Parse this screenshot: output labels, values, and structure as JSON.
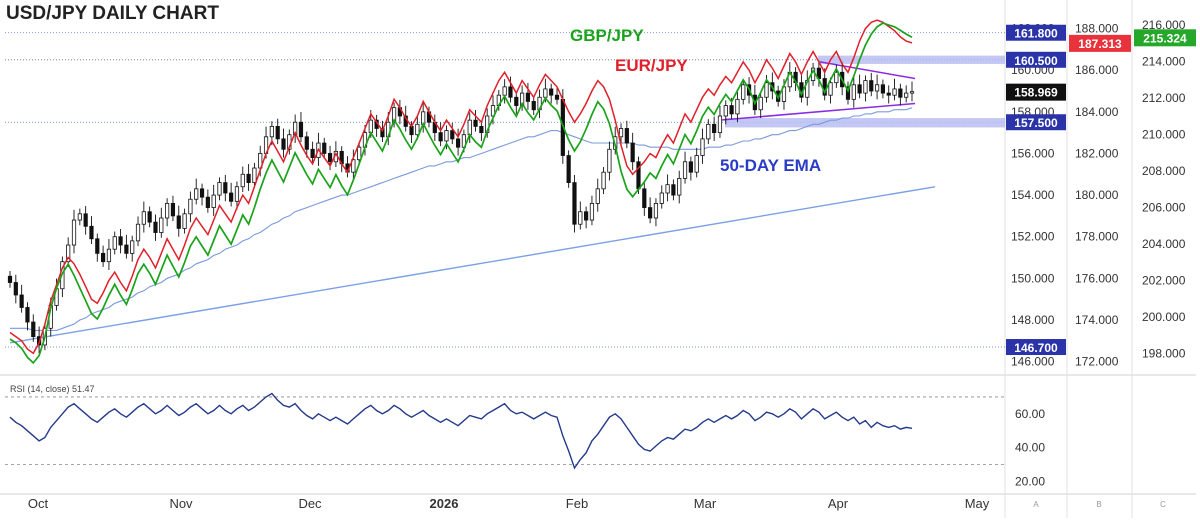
{
  "title": "USD/JPY DAILY CHART",
  "colors": {
    "usdjpy_up": "#ffffff",
    "usdjpy_down": "#111111",
    "gbpjpy": "#1aa31a",
    "eurjpy": "#e0202a",
    "ema": "#7b9bdc",
    "trendline": "#7ba0e6",
    "triangle": "#8a2be2",
    "level_box": "#2a34a8",
    "rsi": "#233a8c"
  },
  "annotations": {
    "gbpjpy": "GBP/JPY",
    "eurjpy": "EUR/JPY",
    "ema": "50-DAY EMA"
  },
  "axes": {
    "usdjpy_ticks": [
      "146.000",
      "148.000",
      "150.000",
      "152.000",
      "154.000",
      "156.000",
      "158.000",
      "160.000",
      "162.000"
    ],
    "eurjpy_ticks": [
      "172.000",
      "174.000",
      "176.000",
      "178.000",
      "180.000",
      "182.000",
      "184.000",
      "186.000",
      "188.000"
    ],
    "gbpjpy_ticks": [
      "198.000",
      "200.000",
      "202.000",
      "204.000",
      "206.000",
      "208.000",
      "210.000",
      "212.000",
      "214.000",
      "216.000"
    ],
    "rsi_ticks": [
      "20.00",
      "40.00",
      "60.00"
    ],
    "x_ticks": [
      "Oct",
      "Nov",
      "Dec",
      "2026",
      "Feb",
      "Mar",
      "Apr",
      "May"
    ],
    "scale_letters": [
      "A",
      "B",
      "C"
    ],
    "usdjpy_range": [
      145.5,
      162.7
    ],
    "eurjpy_range": [
      171.5,
      188.7
    ],
    "gbpjpy_range": [
      197.0,
      216.6
    ],
    "rsi_range": [
      15,
      80
    ]
  },
  "levels": [
    {
      "label": "161.800",
      "value": 161.8
    },
    {
      "label": "160.500",
      "value": 160.5
    },
    {
      "label": "157.500",
      "value": 157.5
    },
    {
      "label": "146.700",
      "value": 146.7
    }
  ],
  "price_tags": {
    "usdjpy": "158.969",
    "eurjpy": "187.313",
    "gbpjpy": "215.324"
  },
  "rsi_label": "RSI (14, close) 51.47",
  "chart_data": {
    "type": "line",
    "x_months": [
      "Oct",
      "Nov",
      "Dec",
      "2026",
      "Feb",
      "Mar",
      "Apr",
      "May"
    ],
    "usdjpy_close": [
      149.8,
      149.2,
      148.6,
      147.9,
      147.2,
      146.8,
      147.6,
      148.7,
      149.5,
      150.8,
      151.6,
      152.8,
      153.1,
      152.5,
      151.9,
      151.2,
      150.8,
      151.4,
      152.0,
      151.6,
      151.2,
      151.8,
      152.6,
      153.2,
      152.7,
      152.2,
      152.9,
      153.6,
      153.0,
      152.4,
      153.1,
      153.8,
      154.3,
      153.9,
      153.4,
      154.0,
      154.6,
      154.1,
      153.7,
      154.4,
      155.0,
      154.6,
      155.3,
      156.0,
      156.8,
      157.3,
      156.7,
      156.2,
      156.9,
      157.5,
      156.8,
      156.2,
      155.8,
      156.5,
      156.0,
      155.6,
      156.1,
      155.5,
      155.1,
      155.7,
      156.3,
      157.0,
      157.6,
      157.2,
      156.8,
      157.5,
      158.2,
      157.8,
      157.3,
      156.9,
      157.4,
      158.0,
      157.5,
      157.0,
      156.6,
      157.1,
      156.7,
      156.3,
      156.9,
      157.6,
      157.3,
      157.0,
      157.8,
      158.3,
      158.8,
      159.2,
      158.7,
      158.3,
      158.9,
      158.5,
      158.1,
      158.7,
      159.1,
      158.8,
      158.6,
      155.9,
      154.6,
      152.6,
      153.2,
      152.8,
      153.6,
      154.3,
      155.1,
      156.2,
      156.8,
      157.2,
      156.5,
      155.6,
      154.3,
      153.4,
      152.9,
      153.6,
      154.1,
      154.5,
      154.0,
      154.8,
      155.6,
      155.1,
      155.9,
      156.7,
      157.4,
      157.0,
      157.8,
      158.3,
      157.9,
      158.6,
      159.3,
      158.8,
      158.1,
      158.7,
      159.4,
      159.0,
      158.5,
      159.2,
      159.9,
      159.4,
      158.7,
      159.5,
      160.1,
      159.6,
      158.8,
      159.4,
      159.9,
      159.2,
      158.6,
      159.3,
      158.9,
      159.5,
      159.0,
      159.3,
      158.9,
      158.8,
      159.1,
      158.7,
      158.9,
      158.969
    ],
    "usdjpy_ema50": [
      147.6,
      147.6,
      147.6,
      147.6,
      147.5,
      147.5,
      147.5,
      147.5,
      147.5,
      147.6,
      147.7,
      147.8,
      148.0,
      148.1,
      148.3,
      148.4,
      148.5,
      148.6,
      148.8,
      148.9,
      149.0,
      149.1,
      149.3,
      149.4,
      149.6,
      149.7,
      149.8,
      150.0,
      150.1,
      150.2,
      150.4,
      150.5,
      150.7,
      150.8,
      150.9,
      151.1,
      151.2,
      151.4,
      151.5,
      151.6,
      151.8,
      151.9,
      152.1,
      152.2,
      152.4,
      152.6,
      152.7,
      152.9,
      153.0,
      153.2,
      153.3,
      153.4,
      153.5,
      153.6,
      153.7,
      153.8,
      153.9,
      154.0,
      154.0,
      154.1,
      154.2,
      154.3,
      154.4,
      154.5,
      154.6,
      154.7,
      154.8,
      154.9,
      155.0,
      155.1,
      155.2,
      155.3,
      155.4,
      155.4,
      155.5,
      155.6,
      155.6,
      155.7,
      155.8,
      155.8,
      155.9,
      156.0,
      156.1,
      156.2,
      156.3,
      156.4,
      156.5,
      156.6,
      156.7,
      156.8,
      156.8,
      156.9,
      157.0,
      157.1,
      157.1,
      157.0,
      156.9,
      156.8,
      156.7,
      156.6,
      156.5,
      156.5,
      156.5,
      156.5,
      156.5,
      156.5,
      156.5,
      156.5,
      156.4,
      156.4,
      156.3,
      156.3,
      156.3,
      156.3,
      156.2,
      156.2,
      156.2,
      156.2,
      156.2,
      156.2,
      156.3,
      156.3,
      156.3,
      156.4,
      156.4,
      156.5,
      156.6,
      156.6,
      156.7,
      156.7,
      156.8,
      156.9,
      156.9,
      157.0,
      157.1,
      157.1,
      157.2,
      157.3,
      157.4,
      157.4,
      157.5,
      157.6,
      157.6,
      157.7,
      157.7,
      157.8,
      157.8,
      157.9,
      157.9,
      158.0,
      158.0,
      158.0,
      158.1,
      158.1,
      158.1,
      158.2
    ],
    "eurjpy": [
      173.4,
      173.2,
      173.0,
      172.6,
      172.4,
      172.9,
      173.8,
      174.9,
      175.7,
      176.5,
      177.0,
      176.7,
      176.2,
      175.6,
      175.0,
      174.8,
      175.3,
      175.9,
      176.3,
      175.8,
      175.4,
      176.1,
      176.9,
      177.4,
      177.0,
      176.5,
      177.2,
      177.9,
      177.4,
      176.9,
      177.6,
      178.4,
      178.9,
      178.5,
      178.1,
      178.8,
      179.5,
      179.1,
      178.7,
      179.4,
      180.0,
      179.6,
      180.4,
      181.2,
      182.0,
      182.6,
      182.1,
      181.6,
      182.3,
      183.0,
      182.4,
      181.9,
      181.5,
      182.2,
      181.8,
      181.4,
      182.0,
      181.5,
      181.1,
      181.8,
      182.5,
      183.2,
      183.9,
      183.5,
      183.1,
      183.8,
      184.6,
      184.2,
      183.7,
      183.3,
      183.8,
      184.5,
      184.0,
      183.5,
      183.1,
      183.6,
      183.2,
      182.8,
      183.4,
      184.1,
      183.8,
      183.5,
      184.3,
      184.9,
      185.5,
      185.9,
      185.4,
      184.9,
      185.5,
      185.1,
      184.7,
      185.3,
      185.8,
      185.5,
      185.2,
      184.6,
      184.0,
      183.5,
      183.9,
      184.4,
      185.0,
      185.5,
      185.2,
      184.6,
      183.6,
      182.4,
      181.4,
      181.0,
      181.3,
      181.6,
      182.0,
      181.8,
      182.4,
      182.9,
      182.5,
      183.2,
      183.9,
      183.5,
      184.1,
      184.7,
      185.1,
      184.8,
      185.3,
      185.7,
      185.4,
      185.9,
      186.4,
      186.0,
      185.4,
      185.9,
      186.5,
      186.1,
      185.6,
      186.2,
      186.8,
      186.4,
      185.8,
      186.4,
      186.9,
      186.4,
      185.9,
      186.5,
      186.9,
      186.3,
      185.9,
      186.6,
      187.4,
      188.0,
      188.3,
      188.4,
      188.3,
      188.1,
      187.9,
      187.6,
      187.4,
      187.313
    ],
    "gbpjpy": [
      198.8,
      198.6,
      198.3,
      197.8,
      197.5,
      197.9,
      198.9,
      200.5,
      201.6,
      202.4,
      202.9,
      202.3,
      201.6,
      200.9,
      200.2,
      199.9,
      200.5,
      201.2,
      201.8,
      201.2,
      200.7,
      201.5,
      202.4,
      202.9,
      202.4,
      201.8,
      202.6,
      203.4,
      202.8,
      202.2,
      203.0,
      203.9,
      204.4,
      203.9,
      203.4,
      204.2,
      205.0,
      204.5,
      204.0,
      204.8,
      205.6,
      205.1,
      206.0,
      207.0,
      207.9,
      208.6,
      208.0,
      207.4,
      208.2,
      209.0,
      208.4,
      207.8,
      207.3,
      208.1,
      207.6,
      207.1,
      207.8,
      207.2,
      206.7,
      207.5,
      208.4,
      209.3,
      210.1,
      209.6,
      209.1,
      209.9,
      210.8,
      210.3,
      209.7,
      209.2,
      209.8,
      210.6,
      210.0,
      209.4,
      208.9,
      209.5,
      209.0,
      208.5,
      209.2,
      210.0,
      209.6,
      209.3,
      210.2,
      210.9,
      211.6,
      212.1,
      211.5,
      211.0,
      211.7,
      211.2,
      210.8,
      211.4,
      212.0,
      211.6,
      211.3,
      210.5,
      209.7,
      209.1,
      209.6,
      210.3,
      211.1,
      211.8,
      211.4,
      210.6,
      209.4,
      208.0,
      207.0,
      206.6,
      207.0,
      207.4,
      207.9,
      207.6,
      208.3,
      208.9,
      208.4,
      209.2,
      210.0,
      209.5,
      210.2,
      211.0,
      211.5,
      211.1,
      211.7,
      212.2,
      211.8,
      212.4,
      213.0,
      212.5,
      211.7,
      212.3,
      213.0,
      212.6,
      212.0,
      212.7,
      213.4,
      212.9,
      212.2,
      212.9,
      213.5,
      213.0,
      212.3,
      213.0,
      213.6,
      213.0,
      212.4,
      213.2,
      214.1,
      214.9,
      215.5,
      215.9,
      216.1,
      216.0,
      215.9,
      215.7,
      215.5,
      215.324
    ],
    "rsi": [
      58,
      55,
      53,
      50,
      47,
      44,
      46,
      52,
      56,
      60,
      64,
      66,
      63,
      60,
      57,
      55,
      58,
      61,
      63,
      60,
      58,
      61,
      64,
      66,
      63,
      60,
      62,
      65,
      62,
      59,
      61,
      64,
      66,
      63,
      60,
      62,
      65,
      62,
      60,
      63,
      65,
      62,
      64,
      67,
      70,
      72,
      68,
      65,
      64,
      66,
      62,
      59,
      57,
      60,
      58,
      56,
      58,
      56,
      54,
      57,
      60,
      63,
      65,
      62,
      60,
      62,
      65,
      63,
      60,
      58,
      60,
      62,
      59,
      57,
      55,
      57,
      55,
      53,
      56,
      59,
      58,
      57,
      60,
      62,
      64,
      66,
      62,
      60,
      61,
      59,
      57,
      59,
      61,
      59,
      58,
      47,
      38,
      28,
      33,
      37,
      44,
      48,
      53,
      58,
      60,
      57,
      52,
      47,
      42,
      39,
      38,
      41,
      44,
      46,
      45,
      48,
      51,
      50,
      52,
      55,
      57,
      55,
      57,
      59,
      57,
      59,
      62,
      60,
      56,
      58,
      61,
      60,
      58,
      60,
      63,
      61,
      57,
      60,
      63,
      61,
      57,
      59,
      61,
      58,
      56,
      58,
      54,
      56,
      52,
      55,
      53,
      52,
      53,
      51,
      52,
      51.47
    ]
  }
}
